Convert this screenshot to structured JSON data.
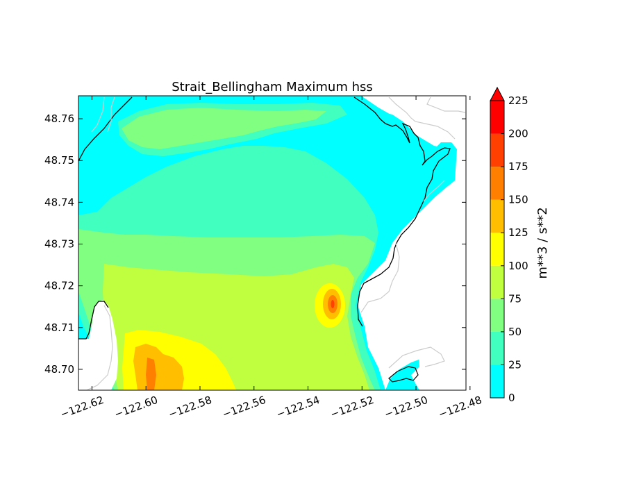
{
  "title": "Strait_Bellingham Maximum hss",
  "chart_data": {
    "type": "heatmap",
    "title": "Strait_Bellingham Maximum hss",
    "x_ticks": [
      "−122.62",
      "−122.60",
      "−122.58",
      "−122.56",
      "−122.54",
      "−122.52",
      "−122.50",
      "−122.48"
    ],
    "x_values": [
      -122.62,
      -122.6,
      -122.58,
      -122.56,
      -122.54,
      -122.52,
      -122.5,
      -122.48
    ],
    "y_ticks": [
      "48.70",
      "48.71",
      "48.72",
      "48.73",
      "48.74",
      "48.75",
      "48.76"
    ],
    "y_values": [
      48.7,
      48.71,
      48.72,
      48.73,
      48.74,
      48.75,
      48.76
    ],
    "xlim": [
      -122.625,
      -122.4815
    ],
    "ylim": [
      48.695,
      48.7655
    ],
    "colorbar": {
      "label": "m**3 / s**2",
      "ticks": [
        "0",
        "25",
        "50",
        "75",
        "100",
        "125",
        "150",
        "175",
        "200",
        "225"
      ],
      "levels": [
        0,
        25,
        50,
        75,
        100,
        125,
        150,
        175,
        200,
        225
      ],
      "colors": [
        "#00ffff",
        "#40ffbf",
        "#80ff80",
        "#c0ff40",
        "#ffff00",
        "#ffbf00",
        "#ff8000",
        "#ff4000",
        "#ff0000"
      ],
      "extend": "max"
    },
    "colors": {
      "c0_25": "#00ffff",
      "c25_50": "#40ffbf",
      "c50_75": "#80ff80",
      "c75_100": "#c0ff40",
      "c100_125": "#ffff00",
      "c125_150": "#ffbf00",
      "c150_175": "#ff8000",
      "c175_200": "#ff4000",
      "c200_225": "#ff0000",
      "coastline": "#000000",
      "land_outline": "#cccccc"
    }
  }
}
